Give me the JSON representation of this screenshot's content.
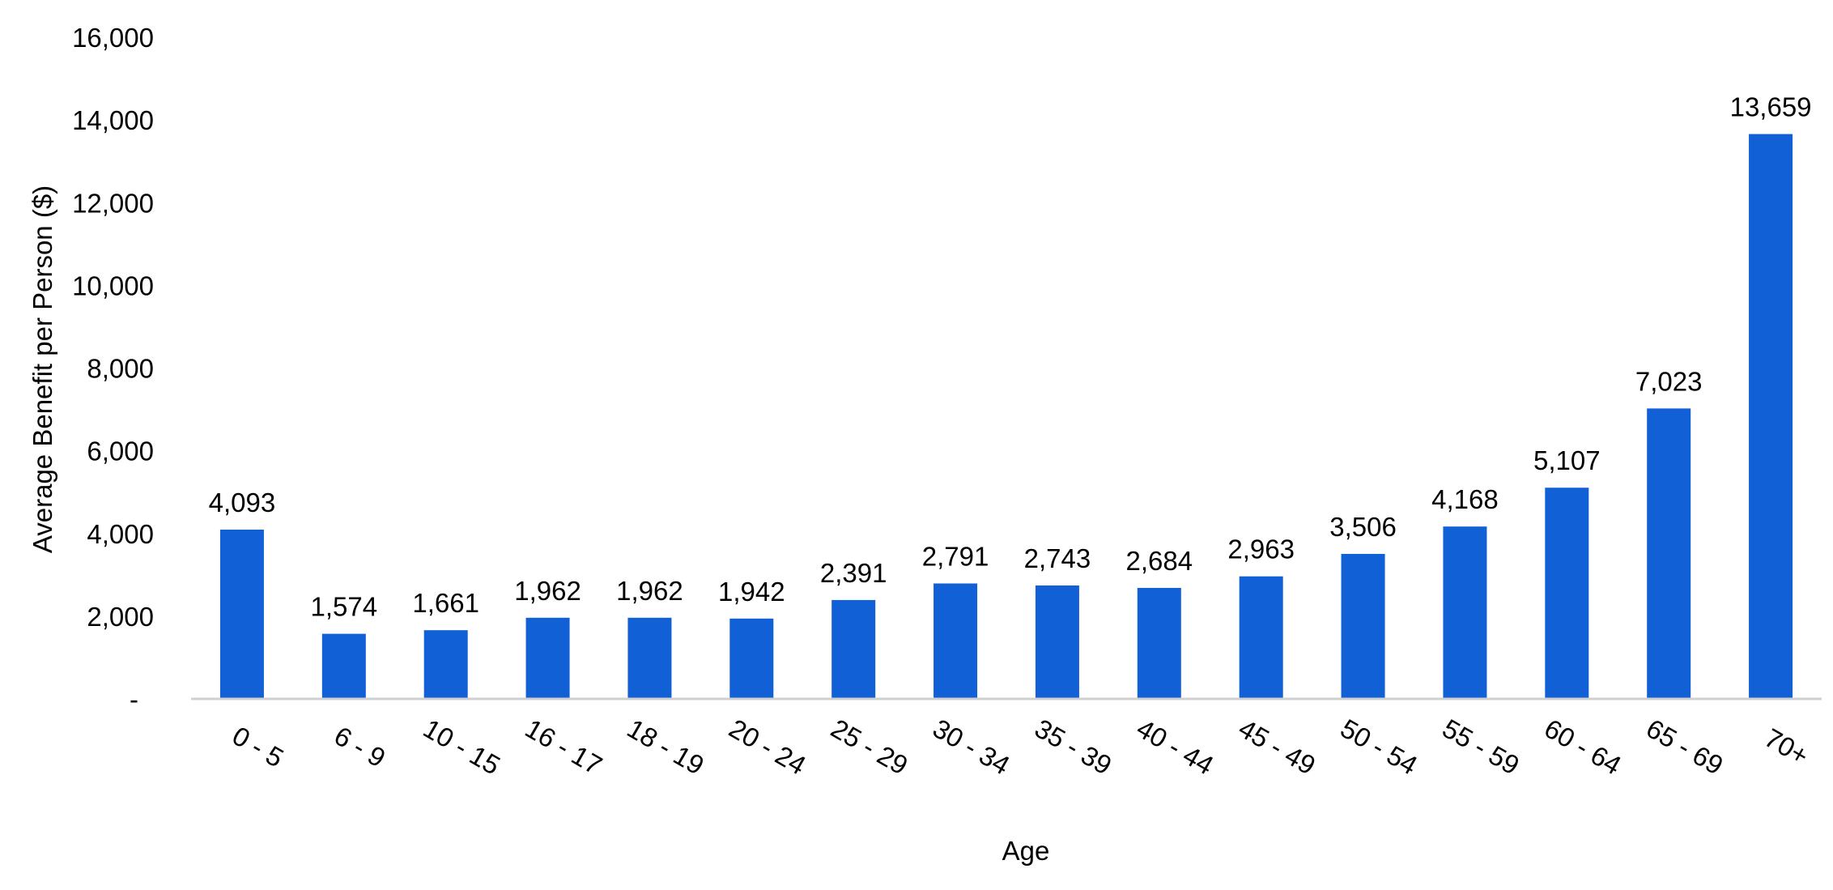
{
  "chart_data": {
    "type": "bar",
    "title": "",
    "xlabel": "Age",
    "ylabel": "Average Benefit per Person ($)",
    "categories": [
      "0 - 5",
      "6 - 9",
      "10 - 15",
      "16 - 17",
      "18 - 19",
      "20 - 24",
      "25 - 29",
      "30 - 34",
      "35 - 39",
      "40 - 44",
      "45 - 49",
      "50 - 54",
      "55 - 59",
      "60 - 64",
      "65 - 69",
      "70+"
    ],
    "values": [
      4093,
      1574,
      1661,
      1962,
      1962,
      1942,
      2391,
      2791,
      2743,
      2684,
      2963,
      3506,
      4168,
      5107,
      7023,
      13659
    ],
    "data_labels": [
      "4,093",
      "1,574",
      "1,661",
      "1,962",
      "1,962",
      "1,942",
      "2,391",
      "2,791",
      "2,743",
      "2,684",
      "2,963",
      "3,506",
      "4,168",
      "5,107",
      "7,023",
      "13,659"
    ],
    "ylim": [
      0,
      16000
    ],
    "yticks": [
      0,
      2000,
      4000,
      6000,
      8000,
      10000,
      12000,
      14000,
      16000
    ],
    "ytick_labels": [
      "-",
      "2,000",
      "4,000",
      "6,000",
      "8,000",
      "10,000",
      "12,000",
      "14,000",
      "16,000"
    ],
    "grid": false,
    "legend": "none",
    "bar_color": "#1260D6",
    "axis_color": "#D0D0D0"
  }
}
